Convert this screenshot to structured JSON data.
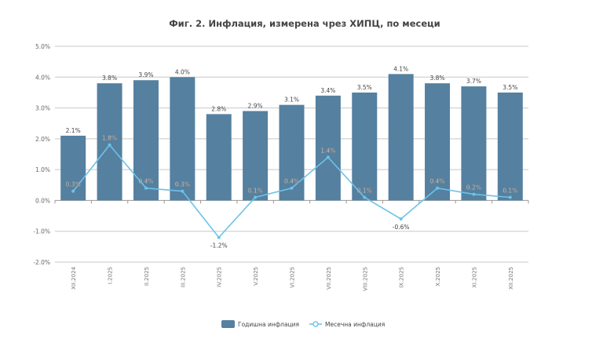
{
  "chart_data": {
    "type": "bar",
    "title": "Фиг. 2. Инфлация, измерена чрез ХИПЦ, по месеци",
    "categories": [
      "XII.2024",
      "I.2025",
      "II.2025",
      "III.2025",
      "IV.2025",
      "V.2025",
      "VI.2025",
      "VII.2025",
      "VIII.2025",
      "IX.2025",
      "X.2025",
      "XI.2025",
      "XII.2025"
    ],
    "series": [
      {
        "name": "Годишна инфлация",
        "type": "bar",
        "color": "#5580a0",
        "values": [
          2.1,
          3.8,
          3.9,
          4.0,
          2.8,
          2.9,
          3.1,
          3.4,
          3.5,
          4.1,
          3.8,
          3.7,
          3.5
        ]
      },
      {
        "name": "Месечна инфлация",
        "type": "line",
        "color": "#6cc3e8",
        "values": [
          0.3,
          1.8,
          0.4,
          0.3,
          -1.2,
          0.1,
          0.4,
          1.4,
          0.1,
          -0.6,
          0.4,
          0.2,
          0.1
        ]
      }
    ],
    "ylim": [
      -2.0,
      5.0
    ],
    "yticks": [
      "5.0%",
      "4.0%",
      "3.0%",
      "2.0%",
      "1.0%",
      "0.0%",
      "-1.0%",
      "-2.0%"
    ],
    "grid": true,
    "legend": "bottom"
  }
}
